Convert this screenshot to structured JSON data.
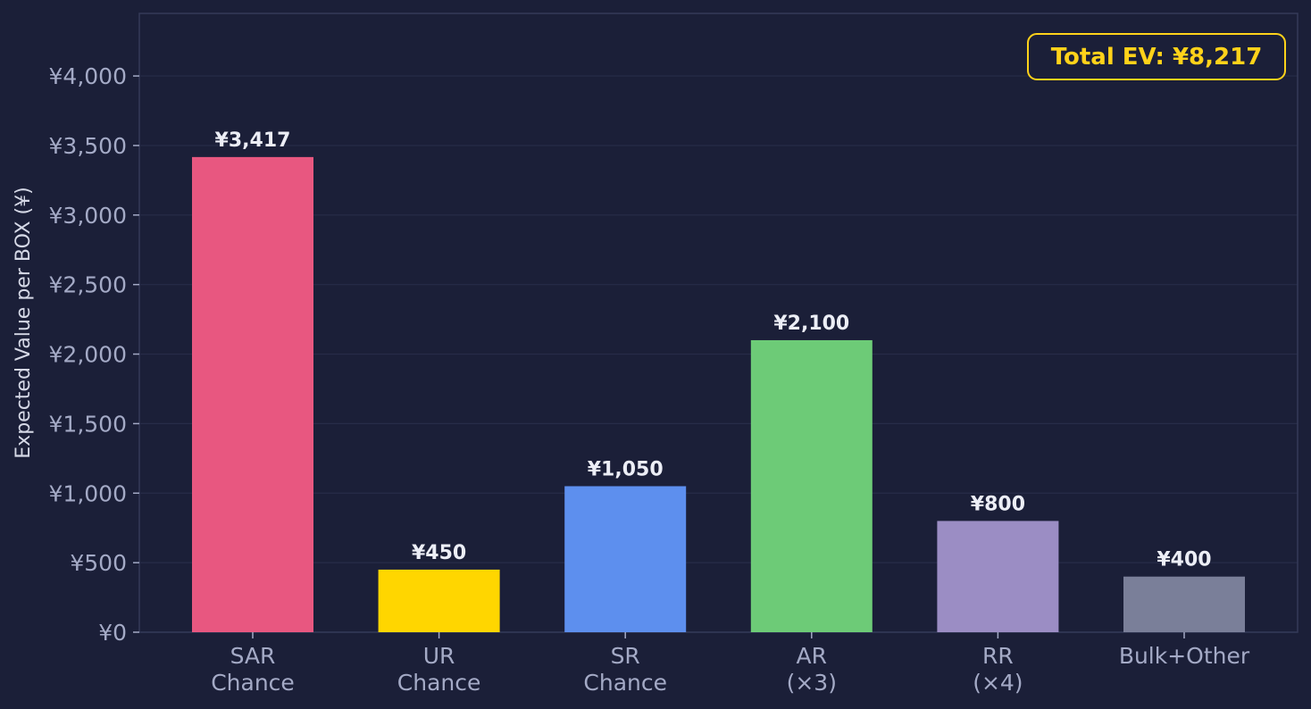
{
  "chart_data": {
    "type": "bar",
    "title": "",
    "xlabel": "",
    "ylabel": "Expected Value per BOX (¥)",
    "ylim": [
      0,
      4450
    ],
    "yticks": [
      0,
      500,
      1000,
      1500,
      2000,
      2500,
      3000,
      3500,
      4000
    ],
    "ytick_labels": [
      "¥0",
      "¥500",
      "¥1,000",
      "¥1,500",
      "¥2,000",
      "¥2,500",
      "¥3,000",
      "¥3,500",
      "¥4,000"
    ],
    "grid": true,
    "categories": [
      [
        "SAR",
        "Chance"
      ],
      [
        "UR",
        "Chance"
      ],
      [
        "SR",
        "Chance"
      ],
      [
        "AR",
        "(×3)"
      ],
      [
        "RR",
        "(×4)"
      ],
      [
        "Bulk+Other"
      ]
    ],
    "values": [
      3417,
      450,
      1050,
      2100,
      800,
      400
    ],
    "value_labels": [
      "¥3,417",
      "¥450",
      "¥1,050",
      "¥2,100",
      "¥800",
      "¥400"
    ],
    "colors": [
      "#e85780",
      "#ffd600",
      "#5d8fee",
      "#6dcb77",
      "#9b8dc4",
      "#7a7f99"
    ],
    "annotation": {
      "text": "Total EV: ¥8,217",
      "placement": "top-right",
      "color": "#ffd21a"
    },
    "background": "#1b1f38",
    "grid_color": "#272c48",
    "axis_color": "#353a58"
  }
}
